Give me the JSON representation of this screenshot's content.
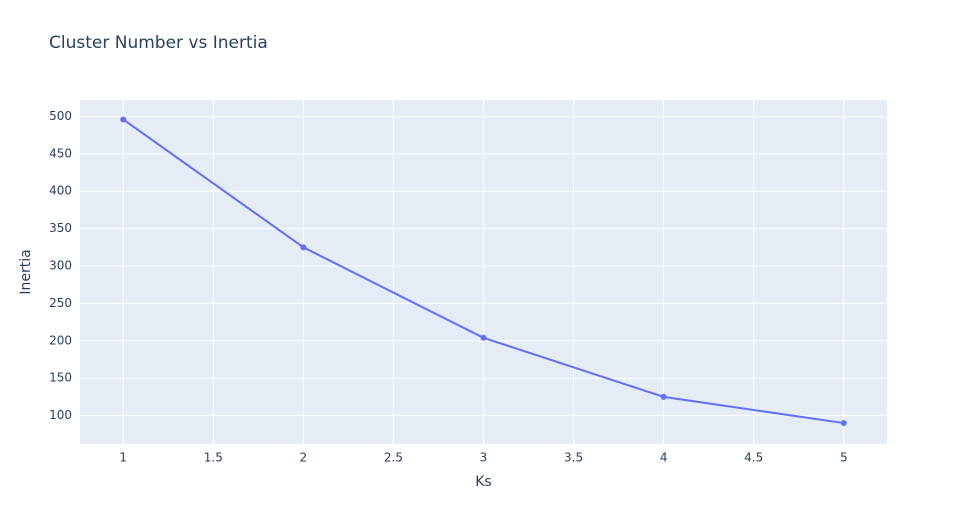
{
  "chart_data": {
    "type": "line",
    "title": "Cluster Number vs Inertia",
    "xlabel": "Ks",
    "ylabel": "Inertia",
    "x": [
      1,
      2,
      3,
      4,
      5
    ],
    "series": [
      {
        "values": [
          496,
          325,
          204,
          125,
          90
        ]
      }
    ],
    "xlim": [
      0.76,
      5.24
    ],
    "ylim": [
      62,
      522
    ],
    "x_ticks": [
      1,
      1.5,
      2,
      2.5,
      3,
      3.5,
      4,
      4.5,
      5
    ],
    "x_tick_labels": [
      "1",
      "1.5",
      "2",
      "2.5",
      "3",
      "3.5",
      "4",
      "4.5",
      "5"
    ],
    "y_ticks": [
      100,
      150,
      200,
      250,
      300,
      350,
      400,
      450,
      500
    ],
    "y_tick_labels": [
      "100",
      "150",
      "200",
      "250",
      "300",
      "350",
      "400",
      "450",
      "500"
    ],
    "grid": true,
    "markers": true,
    "colors": {
      "line": "#636efa",
      "plot_bg": "#e5ecf6",
      "grid": "#ffffff",
      "text": "#2a3f5f"
    }
  }
}
